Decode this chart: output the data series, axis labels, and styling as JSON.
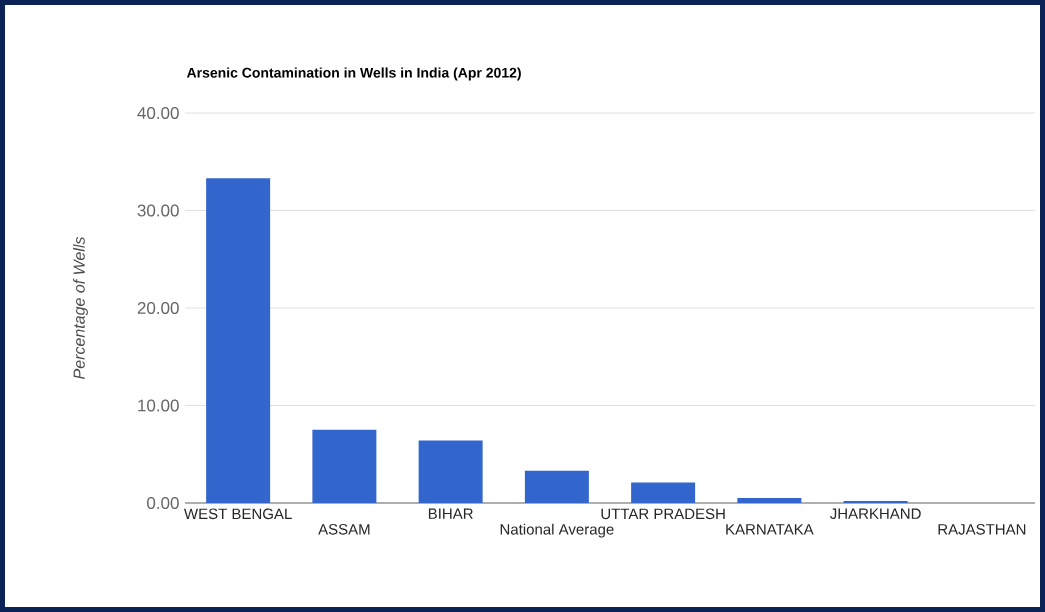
{
  "chart_data": {
    "type": "bar",
    "title": "Arsenic Contamination in Wells in India (Apr 2012)",
    "ylabel": "Percentage of Wells",
    "categories": [
      "WEST BENGAL",
      "ASSAM",
      "BIHAR",
      "National Average",
      "UTTAR PRADESH",
      "KARNATAKA",
      "JHARKHAND",
      "RAJASTHAN"
    ],
    "values": [
      33.3,
      7.5,
      6.4,
      3.3,
      2.1,
      0.5,
      0.2,
      0
    ],
    "color": "#3366cc",
    "ylim": [
      0,
      40
    ],
    "yticks": [
      {
        "value": 0,
        "label": "0.00"
      },
      {
        "value": 10,
        "label": "10.00"
      },
      {
        "value": 20,
        "label": "20.00"
      },
      {
        "value": 30,
        "label": "30.00"
      },
      {
        "value": 40,
        "label": "40.00"
      }
    ],
    "grid": "y"
  }
}
